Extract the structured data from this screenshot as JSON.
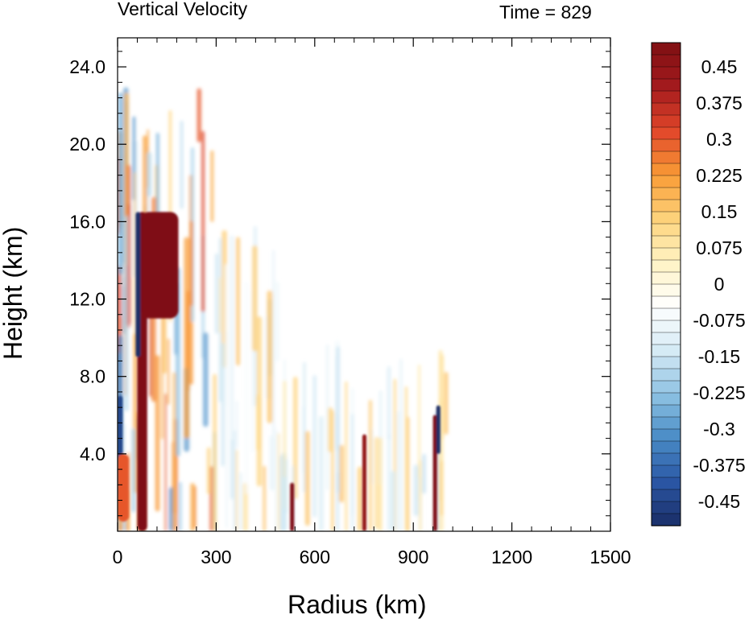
{
  "chart_data": {
    "type": "heatmap",
    "title": "Vertical Velocity",
    "subtitle": "Time = 829",
    "xlabel": "Radius (km)",
    "ylabel": "Height (km)",
    "xlim": [
      0,
      1500
    ],
    "ylim": [
      0,
      24
    ],
    "xticks": [
      0,
      300,
      600,
      900,
      1200,
      1500
    ],
    "xtick_labels": [
      "0",
      "300",
      "600",
      "900",
      "1200",
      "1500"
    ],
    "yticks": [
      4,
      8,
      12,
      16,
      20,
      24
    ],
    "ytick_labels": [
      "4.0",
      "8.0",
      "12.0",
      "16.0",
      "20.0",
      "24.0"
    ],
    "colorbar": {
      "levels_min": -0.5,
      "levels_max": 0.5,
      "step": 0.025,
      "labels": [
        "0.45",
        "0.375",
        "0.3",
        "0.225",
        "0.15",
        "0.075",
        "0",
        "-0.075",
        "-0.15",
        "-0.225",
        "-0.3",
        "-0.375",
        "-0.45"
      ],
      "label_values": [
        0.45,
        0.375,
        0.3,
        0.225,
        0.15,
        0.075,
        0,
        -0.075,
        -0.15,
        -0.225,
        -0.3,
        -0.375,
        -0.45
      ],
      "colormap": [
        "#1a2d66",
        "#2b57a5",
        "#4a8cc6",
        "#8fc3e3",
        "#d6ebf5",
        "#ffffff",
        "#fff3c4",
        "#fdd27a",
        "#f99b35",
        "#e1462a",
        "#a31a1d",
        "#7f0f13"
      ]
    },
    "features": [
      {
        "name": "eyewall updraft core",
        "x_range": [
          60,
          90
        ],
        "height_range": [
          0,
          16.5
        ],
        "w": 0.5
      },
      {
        "name": "upper outflow updraft",
        "x_range": [
          70,
          185
        ],
        "height_range": [
          11,
          16.5
        ],
        "w": 0.5
      },
      {
        "name": "inner downdraft",
        "x_range": [
          55,
          70
        ],
        "height_range": [
          9,
          16.5
        ],
        "w": -0.5
      },
      {
        "name": "near-center downdraft",
        "x_range": [
          0,
          15
        ],
        "height_range": [
          3.5,
          7
        ],
        "w": -0.45
      },
      {
        "name": "near-center updraft",
        "x_range": [
          0,
          35
        ],
        "height_range": [
          0.5,
          4
        ],
        "w": 0.3
      },
      {
        "name": "outer band",
        "x": 530,
        "height_range": [
          0,
          2.5
        ],
        "w": 0.5
      },
      {
        "name": "outer band",
        "x": 750,
        "height_range": [
          0,
          5
        ],
        "w": 0.45
      },
      {
        "name": "outer band updraft",
        "x": 965,
        "height_range": [
          0,
          6
        ],
        "w": 0.5
      },
      {
        "name": "outer band downdraft",
        "x": 975,
        "height_range": [
          4,
          6.5
        ],
        "w": -0.5
      }
    ]
  }
}
